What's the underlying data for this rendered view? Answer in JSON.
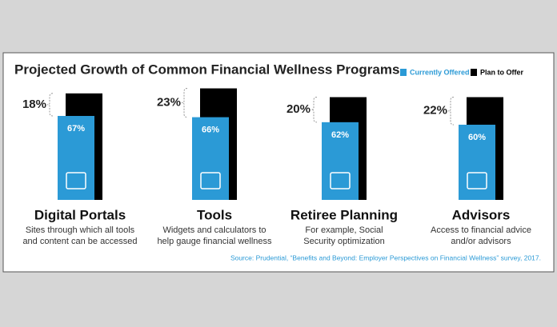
{
  "chart_data": {
    "type": "bar",
    "title": "Projected Growth of Common Financial Wellness Programs",
    "categories": [
      "Digital Portals",
      "Tools",
      "Retiree Planning",
      "Advisors"
    ],
    "descriptions": [
      [
        "Sites through which all tools",
        "and content can be accessed"
      ],
      [
        "Widgets and calculators to",
        "help gauge financial wellness"
      ],
      [
        "For example, Social",
        "Security optimization"
      ],
      [
        "Access to financial advice",
        "and/or advisors"
      ]
    ],
    "series": [
      {
        "name": "Currently Offered",
        "color": "#2b9ad6",
        "values": [
          67,
          66,
          62,
          60
        ],
        "value_labels": [
          "67%",
          "66%",
          "62%",
          "60%"
        ]
      },
      {
        "name": "Plan to Offer",
        "color": "#000000",
        "values": [
          18,
          23,
          20,
          22
        ],
        "value_labels": [
          "18%",
          "23%",
          "20%",
          "22%"
        ]
      }
    ],
    "source": "Source: Prudential, “Benefits and Beyond: Employer Perspectives on Financial Wellness” survey, 2017."
  }
}
